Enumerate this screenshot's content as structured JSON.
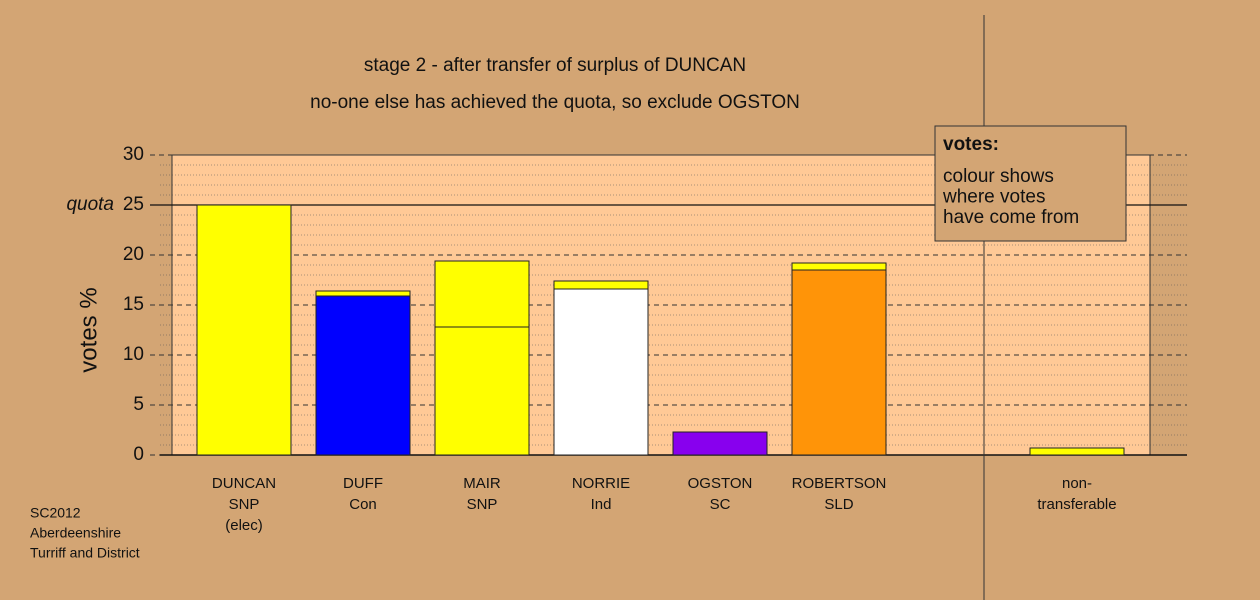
{
  "chart_data": {
    "type": "stacked_bar",
    "title": "stage 2 - after transfer of surplus of DUNCAN",
    "subtitle": "no-one else has achieved the quota, so exclude OGSTON",
    "y_label": "votes %",
    "categories": [
      [
        "DUNCAN",
        "SNP",
        "(elec)"
      ],
      [
        "DUFF",
        "Con"
      ],
      [
        "MAIR",
        "SNP"
      ],
      [
        "NORRIE",
        "Ind"
      ],
      [
        "OGSTON",
        "SC"
      ],
      [
        "ROBERTSON",
        "SLD"
      ],
      null,
      [
        "non-",
        "transferable"
      ]
    ],
    "series": [
      {
        "colors": [
          "#ffff00",
          "#0000ff",
          "#ffff00",
          "#ffffff",
          "#8800ee",
          "#ff9408",
          null,
          "#ffff00"
        ],
        "values": [
          25,
          15.9,
          12.8,
          16.6,
          2.3,
          18.5,
          null,
          0
        ]
      },
      {
        "colors": [
          "#ffff00",
          "#ffff00",
          "#ffff00",
          "#ffff00",
          "#ffff00",
          "#ffff00",
          null,
          "#ffff00"
        ],
        "values": [
          0,
          0.5,
          6.6,
          0.8,
          0,
          0.7,
          null,
          0.7
        ]
      }
    ],
    "ylim": [
      0,
      30
    ],
    "yticks": [
      0,
      5,
      10,
      15,
      20,
      25,
      30
    ],
    "grid": true,
    "quota": {
      "value": 25,
      "label": "quota"
    },
    "legend_title": "votes:",
    "legend_lines": [
      "colour shows",
      "where votes",
      "have come from"
    ],
    "footnote": [
      "SC2012",
      "Aberdeenshire",
      "Turriff and District"
    ]
  }
}
